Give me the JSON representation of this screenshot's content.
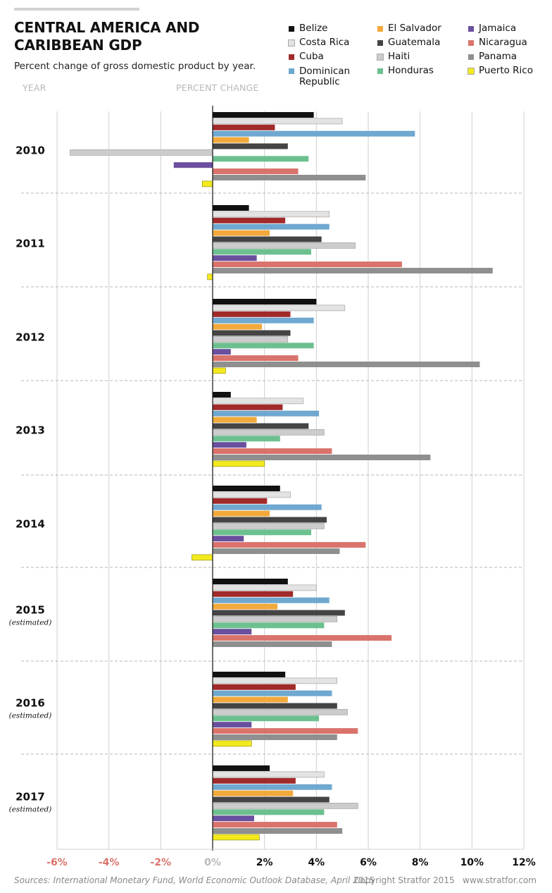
{
  "header": {
    "title_line1": "CENTRAL AMERICA AND",
    "title_line2": "CARIBBEAN GDP",
    "subtitle": "Percent change of gross domestic product by year.",
    "col_year": "YEAR",
    "col_percent": "PERCENT CHANGE"
  },
  "legend": [
    {
      "name": "Belize",
      "color": "#111111"
    },
    {
      "name": "Costa Rica",
      "color": "#e3e3e3"
    },
    {
      "name": "Cuba",
      "color": "#a12a2a"
    },
    {
      "name": "Dominican Republic",
      "color": "#6fa8d0"
    },
    {
      "name": "El Salvador",
      "color": "#f2a93b"
    },
    {
      "name": "Guatemala",
      "color": "#444444"
    },
    {
      "name": "Haiti",
      "color": "#cccccc"
    },
    {
      "name": "Honduras",
      "color": "#6cc08f"
    },
    {
      "name": "Jamaica",
      "color": "#6a4f9e"
    },
    {
      "name": "Nicaragua",
      "color": "#d9736b"
    },
    {
      "name": "Panama",
      "color": "#8f8f8f"
    },
    {
      "name": "Puerto Rico",
      "color": "#f3ea1e"
    }
  ],
  "chart_data": {
    "type": "bar",
    "orientation": "horizontal",
    "categories": [
      "2010",
      "2011",
      "2012",
      "2013",
      "2014",
      "2015",
      "2016",
      "2017"
    ],
    "category_notes": [
      "",
      "",
      "",
      "",
      "",
      "(estimated)",
      "(estimated)",
      "(estimated)"
    ],
    "xlim": [
      -6,
      12
    ],
    "xticks": [
      -6,
      -4,
      -2,
      0,
      2,
      4,
      6,
      8,
      10,
      12
    ],
    "xtick_labels": [
      "-6%",
      "-4%",
      "-2%",
      "0%",
      "2%",
      "4%",
      "6%",
      "8%",
      "10%",
      "12%"
    ],
    "grid": true,
    "series": [
      {
        "name": "Belize",
        "color": "#111111",
        "values": [
          3.9,
          1.4,
          4.0,
          0.7,
          2.6,
          2.9,
          2.8,
          2.2
        ]
      },
      {
        "name": "Costa Rica",
        "color": "#e3e3e3",
        "values": [
          5.0,
          4.5,
          5.1,
          3.5,
          3.0,
          4.0,
          4.8,
          4.3
        ]
      },
      {
        "name": "Cuba",
        "color": "#a12a2a",
        "values": [
          2.4,
          2.8,
          3.0,
          2.7,
          2.1,
          3.1,
          3.2,
          3.2
        ]
      },
      {
        "name": "Dominican Republic",
        "color": "#6fa8d0",
        "values": [
          7.8,
          4.5,
          3.9,
          4.1,
          4.2,
          4.5,
          4.6,
          4.6
        ]
      },
      {
        "name": "El Salvador",
        "color": "#f2a93b",
        "values": [
          1.4,
          2.2,
          1.9,
          1.7,
          2.2,
          2.5,
          2.9,
          3.1
        ]
      },
      {
        "name": "Guatemala",
        "color": "#444444",
        "values": [
          2.9,
          4.2,
          3.0,
          3.7,
          4.4,
          5.1,
          4.8,
          4.5
        ]
      },
      {
        "name": "Haiti",
        "color": "#cccccc",
        "values": [
          -5.5,
          5.5,
          2.9,
          4.3,
          4.3,
          4.8,
          5.2,
          5.6
        ]
      },
      {
        "name": "Honduras",
        "color": "#6cc08f",
        "values": [
          3.7,
          3.8,
          3.9,
          2.6,
          3.8,
          4.3,
          4.1,
          4.3
        ]
      },
      {
        "name": "Jamaica",
        "color": "#6a4f9e",
        "values": [
          -1.5,
          1.7,
          0.7,
          1.3,
          1.2,
          1.5,
          1.5,
          1.6
        ]
      },
      {
        "name": "Nicaragua",
        "color": "#d9736b",
        "values": [
          3.3,
          7.3,
          3.3,
          4.6,
          5.9,
          6.9,
          5.6,
          4.8
        ]
      },
      {
        "name": "Panama",
        "color": "#8f8f8f",
        "values": [
          5.9,
          10.8,
          10.3,
          8.4,
          4.9,
          4.6,
          4.8,
          5.0
        ]
      },
      {
        "name": "Puerto Rico",
        "color": "#f3ea1e",
        "values": [
          -0.4,
          -0.2,
          0.5,
          2.0,
          -0.8,
          0.0,
          1.5,
          1.8
        ]
      }
    ]
  },
  "footer": {
    "sources": "Sources: International Monetary Fund, World Economic Outlook Database, April 2015",
    "copyright": "Copyright Stratfor 2015",
    "site": "www.stratfor.com"
  }
}
